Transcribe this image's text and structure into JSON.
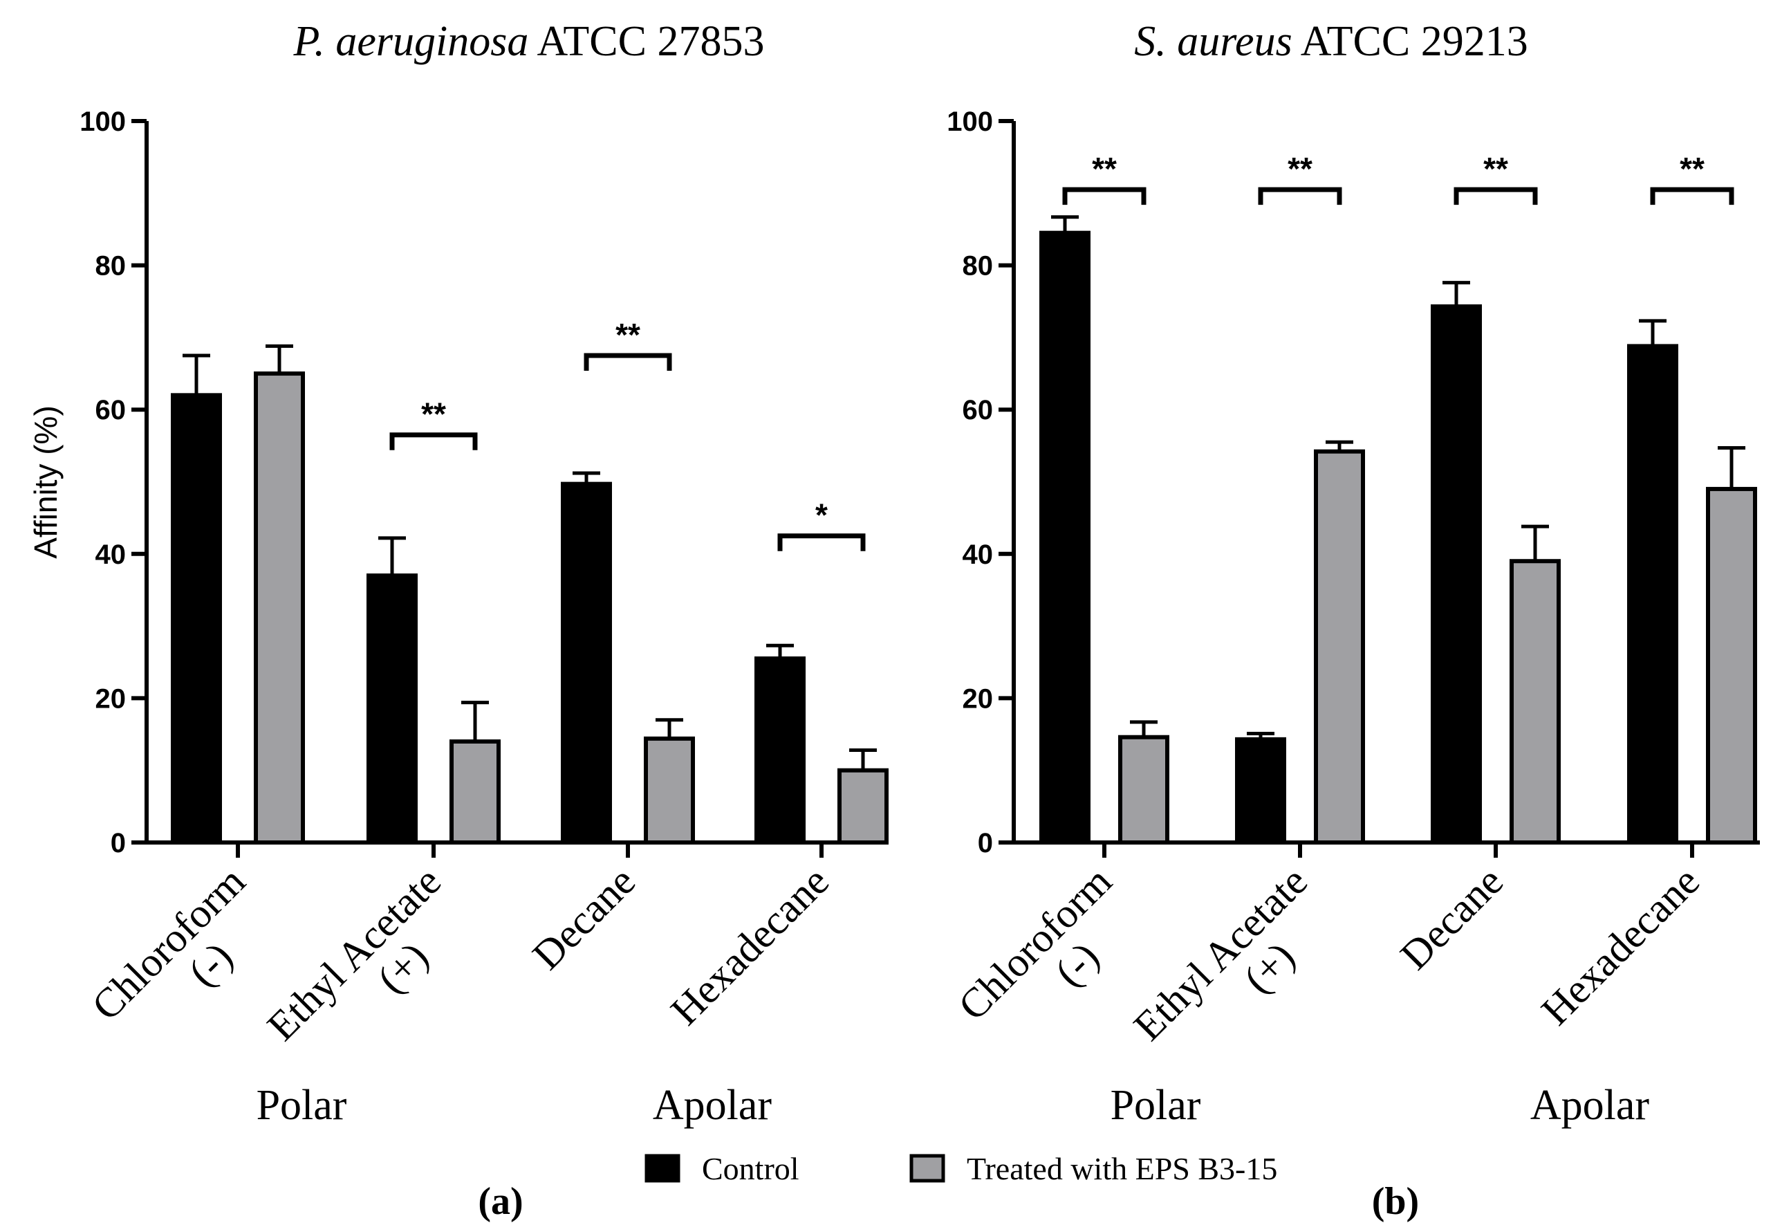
{
  "colors": {
    "control": "#000000",
    "treated": "#a0a0a3",
    "axis": "#000000"
  },
  "legend": [
    {
      "name": "Control",
      "color": "#000000"
    },
    {
      "name": "Treated with EPS B3-15",
      "color": "#a0a0a3"
    }
  ],
  "chart_data": [
    {
      "type": "bar",
      "panel": "(a)",
      "title_italic": "P. aeruginosa",
      "title_rest": " ATCC 27853",
      "ylabel": "Affinity (%)",
      "ylim": [
        0,
        100
      ],
      "yticks": [
        "0",
        "20",
        "40",
        "60",
        "80",
        "100"
      ],
      "categories": [
        {
          "line1": "Chloroform",
          "line2": "(-)"
        },
        {
          "line1": "Ethyl Acetate",
          "line2": "(+)"
        },
        {
          "line1": "Decane",
          "line2": ""
        },
        {
          "line1": "Hexadecane",
          "line2": ""
        }
      ],
      "groups": [
        "Polar",
        "Apolar"
      ],
      "series": [
        {
          "name": "Control",
          "values": [
            62,
            37,
            49.7,
            25.5
          ],
          "errors": [
            5.5,
            5.2,
            1.5,
            1.8
          ]
        },
        {
          "name": "Treated with EPS B3-15",
          "values": [
            65,
            14,
            14.4,
            10
          ],
          "errors": [
            3.8,
            5.4,
            2.6,
            2.8
          ]
        }
      ],
      "significance": [
        "",
        "**",
        "**",
        "*"
      ],
      "significance_level": [
        null,
        56.5,
        67.5,
        42.5
      ]
    },
    {
      "type": "bar",
      "panel": "(b)",
      "title_italic": "S. aureus",
      "title_rest": " ATCC 29213",
      "ylabel": "",
      "ylim": [
        0,
        100
      ],
      "yticks": [
        "0",
        "20",
        "40",
        "60",
        "80",
        "100"
      ],
      "categories": [
        {
          "line1": "Chloroform",
          "line2": "(-)"
        },
        {
          "line1": "Ethyl Acetate",
          "line2": "(+)"
        },
        {
          "line1": "Decane",
          "line2": ""
        },
        {
          "line1": "Hexadecane",
          "line2": ""
        }
      ],
      "groups": [
        "Polar",
        "Apolar"
      ],
      "series": [
        {
          "name": "Control",
          "values": [
            84.5,
            14.3,
            74.3,
            68.8
          ],
          "errors": [
            2.2,
            0.8,
            3.3,
            3.5
          ]
        },
        {
          "name": "Treated with EPS B3-15",
          "values": [
            14.6,
            54.2,
            39,
            49
          ],
          "errors": [
            2.1,
            1.3,
            4.8,
            5.7
          ]
        }
      ],
      "significance": [
        "**",
        "**",
        "**",
        "**"
      ],
      "significance_level": [
        90.5,
        90.5,
        90.5,
        90.5
      ]
    }
  ]
}
